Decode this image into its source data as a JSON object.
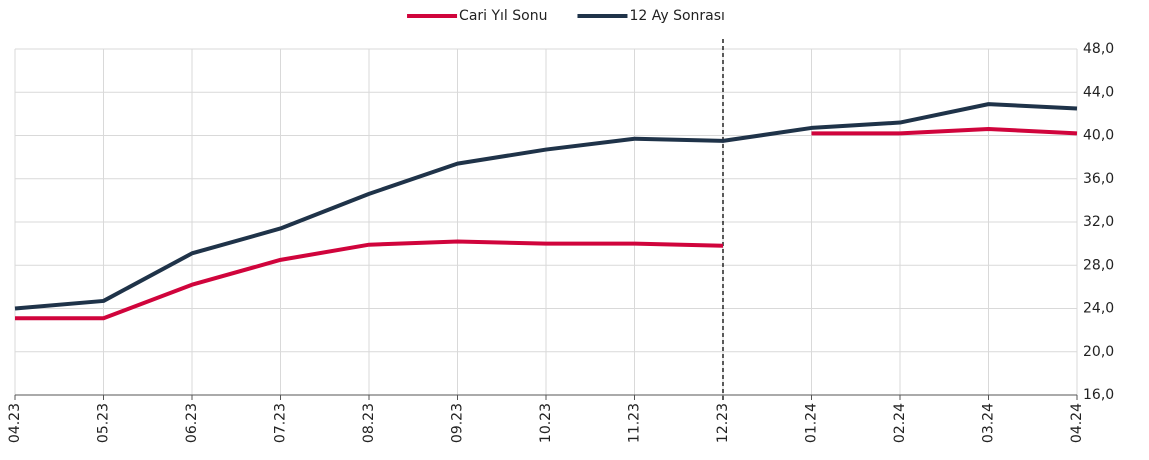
{
  "chart_data": {
    "type": "line",
    "categories": [
      "04.23",
      "05.23",
      "06.23",
      "07.23",
      "08.23",
      "09.23",
      "10.23",
      "11.23",
      "12.23",
      "01.24",
      "02.24",
      "03.24",
      "04.24"
    ],
    "series": [
      {
        "name": "Cari Yıl Sonu",
        "color": "#d0043c",
        "values": [
          23.1,
          23.1,
          26.2,
          28.5,
          29.9,
          30.2,
          30.0,
          30.0,
          29.8,
          null,
          null,
          null,
          null
        ]
      },
      {
        "name": "12 Ay Sonrası",
        "color": "#1f3349",
        "values": [
          24.0,
          24.7,
          29.1,
          31.4,
          34.6,
          37.4,
          38.7,
          39.7,
          39.5,
          40.7,
          41.2,
          42.9,
          42.5
        ]
      },
      {
        "color": "#d0043c",
        "values": [
          null,
          null,
          null,
          null,
          null,
          null,
          null,
          null,
          null,
          40.2,
          40.2,
          40.6,
          40.2
        ]
      }
    ],
    "ylim": [
      16,
      48
    ],
    "yticks": [
      {
        "value": 16,
        "label": "16,0"
      },
      {
        "value": 20,
        "label": "20,0"
      },
      {
        "value": 24,
        "label": "24,0"
      },
      {
        "value": 28,
        "label": "28,0"
      },
      {
        "value": 32,
        "label": "32,0"
      },
      {
        "value": 36,
        "label": "36,0"
      },
      {
        "value": 40,
        "label": "40,0"
      },
      {
        "value": 44,
        "label": "44,0"
      },
      {
        "value": 48,
        "label": "48,0"
      }
    ],
    "y_axis_side": "right",
    "grid": true,
    "legend": "top",
    "divider_at": "12.23"
  }
}
